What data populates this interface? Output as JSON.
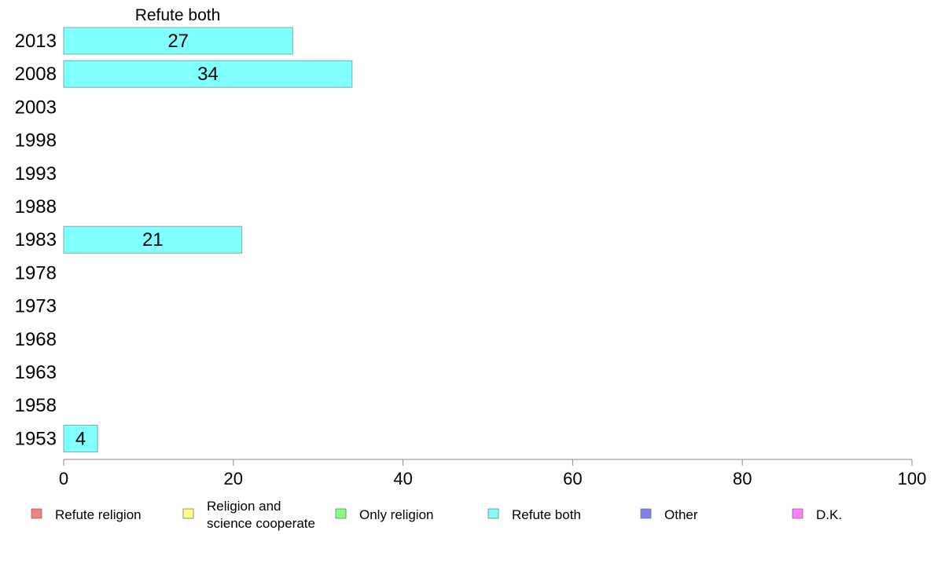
{
  "chart_data": {
    "type": "bar",
    "orientation": "horizontal",
    "title": "Refute both",
    "categories": [
      "2013",
      "2008",
      "2003",
      "1998",
      "1993",
      "1988",
      "1983",
      "1978",
      "1973",
      "1968",
      "1963",
      "1958",
      "1953"
    ],
    "series": [
      {
        "name": "Refute both",
        "color": "#80ffff",
        "values": [
          27,
          34,
          null,
          null,
          null,
          null,
          21,
          null,
          null,
          null,
          null,
          null,
          4
        ]
      }
    ],
    "xlim": [
      0,
      100
    ],
    "xticks": [
      "0",
      "20",
      "40",
      "60",
      "80",
      "100"
    ],
    "grid": false,
    "legend": {
      "placement": "bottom",
      "items": [
        {
          "label": "Refute religion",
          "color": "#f08080"
        },
        {
          "label": "Religion and science cooperate",
          "lines": [
            "Religion and",
            "science cooperate"
          ],
          "color": "#ffff80"
        },
        {
          "label": "Only religion",
          "color": "#80ff80"
        },
        {
          "label": "Refute both",
          "color": "#80ffff"
        },
        {
          "label": "Other",
          "color": "#8080f0"
        },
        {
          "label": "D.K.",
          "color": "#ff80ff"
        }
      ]
    }
  }
}
